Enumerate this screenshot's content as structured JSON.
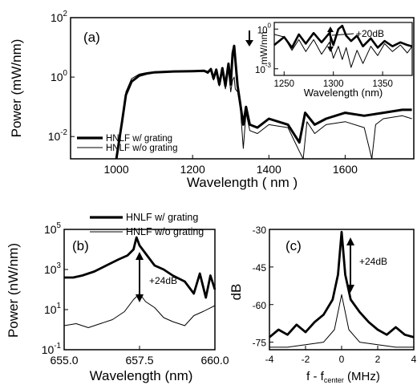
{
  "chart_data": [
    {
      "panel_label": "(a)",
      "type": "line",
      "xlabel": "Wavelength ( nm )",
      "ylabel": "Power (mW/nm)",
      "xlim": [
        880,
        1780
      ],
      "ylim_log10": [
        -2.75,
        2
      ],
      "y_scale": "log",
      "xticks": [
        1000,
        1200,
        1400,
        1600
      ],
      "yticks": [
        -2,
        0,
        2
      ],
      "legend_position": "bottom-left",
      "series": [
        {
          "name": "HNLF w/ grating",
          "style": "thick",
          "points": [
            [
              1000,
              -3.0
            ],
            [
              1015,
              -1.5
            ],
            [
              1025,
              -0.6
            ],
            [
              1040,
              -0.15
            ],
            [
              1060,
              0.05
            ],
            [
              1080,
              0.12
            ],
            [
              1100,
              0.16
            ],
            [
              1150,
              0.19
            ],
            [
              1200,
              0.2
            ],
            [
              1230,
              0.21
            ],
            [
              1240,
              0.16
            ],
            [
              1248,
              0.27
            ],
            [
              1255,
              -0.05
            ],
            [
              1262,
              0.25
            ],
            [
              1270,
              -0.25
            ],
            [
              1278,
              0.3
            ],
            [
              1286,
              -0.3
            ],
            [
              1294,
              0.45
            ],
            [
              1300,
              -0.25
            ],
            [
              1305,
              0.8
            ],
            [
              1309,
              1.05
            ],
            [
              1312,
              0.6
            ],
            [
              1318,
              -0.3
            ],
            [
              1325,
              -0.9
            ],
            [
              1333,
              -1.6
            ],
            [
              1340,
              -1.0
            ],
            [
              1350,
              -1.6
            ],
            [
              1370,
              -1.7
            ],
            [
              1400,
              -1.4
            ],
            [
              1450,
              -1.6
            ],
            [
              1480,
              -2.2
            ],
            [
              1495,
              -1.2
            ],
            [
              1520,
              -1.6
            ],
            [
              1550,
              -1.4
            ],
            [
              1600,
              -1.2
            ],
            [
              1650,
              -1.3
            ],
            [
              1700,
              -1.2
            ],
            [
              1750,
              -1.1
            ],
            [
              1775,
              -1.1
            ]
          ]
        },
        {
          "name": "HNLF w/o grating",
          "style": "thin",
          "points": [
            [
              1000,
              -3.0
            ],
            [
              1015,
              -1.4
            ],
            [
              1025,
              -0.5
            ],
            [
              1040,
              -0.05
            ],
            [
              1060,
              0.1
            ],
            [
              1080,
              0.15
            ],
            [
              1100,
              0.18
            ],
            [
              1150,
              0.2
            ],
            [
              1200,
              0.22
            ],
            [
              1230,
              0.2
            ],
            [
              1240,
              0.12
            ],
            [
              1248,
              0.3
            ],
            [
              1255,
              -0.1
            ],
            [
              1262,
              0.2
            ],
            [
              1270,
              -0.3
            ],
            [
              1278,
              0.25
            ],
            [
              1286,
              -0.4
            ],
            [
              1294,
              0.3
            ],
            [
              1300,
              -0.5
            ],
            [
              1305,
              -0.1
            ],
            [
              1309,
              0.0
            ],
            [
              1312,
              -0.4
            ],
            [
              1318,
              -0.5
            ],
            [
              1325,
              -1.0
            ],
            [
              1333,
              -2.4
            ],
            [
              1340,
              -1.2
            ],
            [
              1350,
              -1.8
            ],
            [
              1370,
              -1.9
            ],
            [
              1400,
              -1.6
            ],
            [
              1450,
              -1.7
            ],
            [
              1480,
              -2.5
            ],
            [
              1490,
              -2.9
            ],
            [
              1500,
              -1.5
            ],
            [
              1520,
              -1.9
            ],
            [
              1550,
              -1.6
            ],
            [
              1600,
              -1.5
            ],
            [
              1650,
              -1.7
            ],
            [
              1670,
              -2.8
            ],
            [
              1680,
              -1.6
            ],
            [
              1700,
              -1.4
            ],
            [
              1750,
              -1.3
            ],
            [
              1775,
              -1.4
            ]
          ]
        }
      ],
      "annotation_marker": "down-arrow near 1310 nm",
      "inset": {
        "type": "line",
        "xlabel": "Wavelength (nm)",
        "ylabel": "mW/nm",
        "xlim": [
          1240,
          1380
        ],
        "ylim_log10": [
          -3.5,
          0.5
        ],
        "y_scale": "log",
        "xticks": [
          1250,
          1300,
          1350
        ],
        "yticks": [
          -3,
          0
        ],
        "annotation": "+20dB",
        "series": [
          {
            "name": "HNLF w/ grating",
            "style": "thick",
            "points": [
              [
                1240,
                -1.2
              ],
              [
                1250,
                -0.6
              ],
              [
                1258,
                -1.4
              ],
              [
                1265,
                -0.4
              ],
              [
                1272,
                -1.1
              ],
              [
                1280,
                -0.3
              ],
              [
                1288,
                -1.0
              ],
              [
                1296,
                -0.3
              ],
              [
                1300,
                -1.2
              ],
              [
                1305,
                0.0
              ],
              [
                1309,
                0.25
              ],
              [
                1313,
                -0.5
              ],
              [
                1318,
                -0.9
              ],
              [
                1324,
                -0.5
              ],
              [
                1330,
                -1.3
              ],
              [
                1338,
                -0.7
              ],
              [
                1345,
                -1.4
              ],
              [
                1352,
                -0.9
              ],
              [
                1360,
                -1.3
              ],
              [
                1368,
                -1.0
              ],
              [
                1375,
                -1.2
              ],
              [
                1380,
                -1.3
              ]
            ]
          },
          {
            "name": "HNLF w/o grating",
            "style": "thin",
            "points": [
              [
                1240,
                -0.4
              ],
              [
                1250,
                -0.6
              ],
              [
                1258,
                -1.6
              ],
              [
                1265,
                -0.8
              ],
              [
                1272,
                -1.7
              ],
              [
                1280,
                -0.8
              ],
              [
                1288,
                -1.9
              ],
              [
                1296,
                -1.0
              ],
              [
                1300,
                -2.2
              ],
              [
                1305,
                -1.3
              ],
              [
                1309,
                -2.3
              ],
              [
                1313,
                -1.4
              ],
              [
                1318,
                -2.9
              ],
              [
                1324,
                -1.6
              ],
              [
                1330,
                -2.6
              ],
              [
                1338,
                -1.3
              ],
              [
                1345,
                -2.0
              ],
              [
                1352,
                -1.1
              ],
              [
                1360,
                -1.7
              ],
              [
                1368,
                -1.2
              ],
              [
                1375,
                -1.8
              ],
              [
                1380,
                -1.3
              ]
            ]
          }
        ]
      }
    },
    {
      "panel_label": "(b)",
      "type": "line",
      "xlabel": "Wavelength (nm)",
      "ylabel": "Power (nW/nm)",
      "xlim": [
        655.0,
        660.0
      ],
      "ylim_log10": [
        -1,
        5
      ],
      "y_scale": "log",
      "xticks": [
        655.0,
        657.5,
        660.0
      ],
      "xtick_labels": [
        "655.0",
        "657.5",
        "660.0"
      ],
      "yticks": [
        -1,
        1,
        3,
        5
      ],
      "annotation": "+24dB",
      "legend_position": "top",
      "series": [
        {
          "name": "HNLF w/ grating",
          "style": "thick",
          "points": [
            [
              655.0,
              2.6
            ],
            [
              655.3,
              2.6
            ],
            [
              655.6,
              2.7
            ],
            [
              656.0,
              2.9
            ],
            [
              656.4,
              3.2
            ],
            [
              656.8,
              3.5
            ],
            [
              657.1,
              3.7
            ],
            [
              657.3,
              4.0
            ],
            [
              657.4,
              4.6
            ],
            [
              657.5,
              4.2
            ],
            [
              657.7,
              3.8
            ],
            [
              658.0,
              3.2
            ],
            [
              658.3,
              3.0
            ],
            [
              658.6,
              2.7
            ],
            [
              659.0,
              2.4
            ],
            [
              659.3,
              1.8
            ],
            [
              659.5,
              2.8
            ],
            [
              659.7,
              1.6
            ],
            [
              659.85,
              2.7
            ],
            [
              660.0,
              2.0
            ]
          ]
        },
        {
          "name": "HNLF w/o grating",
          "style": "thin",
          "points": [
            [
              655.0,
              0.2
            ],
            [
              655.4,
              0.3
            ],
            [
              655.8,
              0.1
            ],
            [
              656.2,
              0.3
            ],
            [
              656.6,
              0.5
            ],
            [
              657.0,
              0.9
            ],
            [
              657.3,
              1.5
            ],
            [
              657.5,
              1.8
            ],
            [
              657.7,
              1.4
            ],
            [
              658.0,
              1.1
            ],
            [
              658.3,
              0.6
            ],
            [
              658.6,
              0.4
            ],
            [
              659.0,
              0.2
            ],
            [
              659.3,
              0.7
            ],
            [
              659.6,
              0.9
            ],
            [
              660.0,
              1.2
            ]
          ]
        }
      ]
    },
    {
      "panel_label": "(c)",
      "type": "line",
      "xlabel": "f - f_center (MHz)",
      "ylabel": "dB",
      "xlim": [
        -4,
        4
      ],
      "ylim": [
        -78,
        -30
      ],
      "xticks": [
        -4,
        -2,
        0,
        2,
        4
      ],
      "yticks": [
        -30,
        -45,
        -60,
        -75
      ],
      "annotation": "+24dB",
      "series": [
        {
          "name": "HNLF w/ grating",
          "style": "thick",
          "points": [
            [
              -4,
              -73
            ],
            [
              -3.5,
              -70
            ],
            [
              -3,
              -72
            ],
            [
              -2.5,
              -68
            ],
            [
              -2,
              -71
            ],
            [
              -1.5,
              -67
            ],
            [
              -1,
              -64
            ],
            [
              -0.5,
              -58
            ],
            [
              -0.2,
              -48
            ],
            [
              0,
              -31
            ],
            [
              0.2,
              -48
            ],
            [
              0.5,
              -58
            ],
            [
              1,
              -63
            ],
            [
              1.5,
              -67
            ],
            [
              2,
              -70
            ],
            [
              2.5,
              -72
            ],
            [
              3,
              -69
            ],
            [
              3.5,
              -72
            ],
            [
              4,
              -73
            ]
          ]
        },
        {
          "name": "HNLF w/o grating",
          "style": "thin",
          "points": [
            [
              -4,
              -77
            ],
            [
              -3,
              -77
            ],
            [
              -2,
              -76
            ],
            [
              -1,
              -75
            ],
            [
              -0.4,
              -70
            ],
            [
              0,
              -56
            ],
            [
              0.4,
              -70
            ],
            [
              1,
              -75
            ],
            [
              2,
              -76
            ],
            [
              3,
              -77
            ],
            [
              4,
              -77
            ]
          ]
        }
      ]
    }
  ]
}
